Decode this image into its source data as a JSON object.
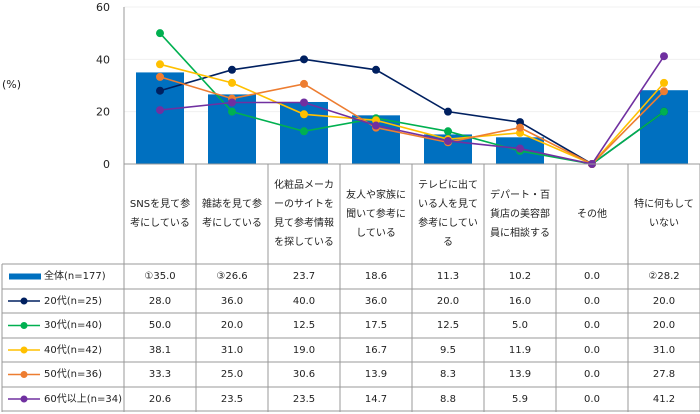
{
  "chart_data": {
    "type": "bar",
    "unit_label": "(%)",
    "ylim": [
      0,
      60
    ],
    "yticks": [
      0,
      20,
      40,
      60
    ],
    "grid": true,
    "categories": [
      "SNSを見て参考にしている",
      "雑誌を見て参考にしている",
      "化粧品メーカーのサイトを見て参考情報を探している",
      "友人や家族に聞いて参考にしている",
      "テレビに出ている人を見て参考にしている",
      "デパート・百貨店の美容部員に相談する",
      "その他",
      "特に何もしていない"
    ],
    "bar_series": {
      "name": "全体(n=177)",
      "color": "#0070c0",
      "values": [
        35.0,
        26.6,
        23.7,
        18.6,
        11.3,
        10.2,
        0.0,
        28.2
      ],
      "labels": [
        "①35.0",
        "③26.6",
        "23.7",
        "18.6",
        "11.3",
        "10.2",
        "0.0",
        "②28.2"
      ]
    },
    "line_series": [
      {
        "name": "20代(n=25)",
        "color": "#002060",
        "values": [
          28.0,
          36.0,
          40.0,
          36.0,
          20.0,
          16.0,
          0.0,
          20.0
        ]
      },
      {
        "name": "30代(n=40)",
        "color": "#00b050",
        "values": [
          50.0,
          20.0,
          12.5,
          17.5,
          12.5,
          5.0,
          0.0,
          20.0
        ]
      },
      {
        "name": "40代(n=42)",
        "color": "#ffc000",
        "values": [
          38.1,
          31.0,
          19.0,
          16.7,
          9.5,
          11.9,
          0.0,
          31.0
        ]
      },
      {
        "name": "50代(n=36)",
        "color": "#ed7d31",
        "values": [
          33.3,
          25.0,
          30.6,
          13.9,
          8.3,
          13.9,
          0.0,
          27.8
        ]
      },
      {
        "name": "60代以上(n=34)",
        "color": "#7030a0",
        "values": [
          20.6,
          23.5,
          23.5,
          14.7,
          8.8,
          5.9,
          0.0,
          41.2
        ]
      }
    ]
  }
}
